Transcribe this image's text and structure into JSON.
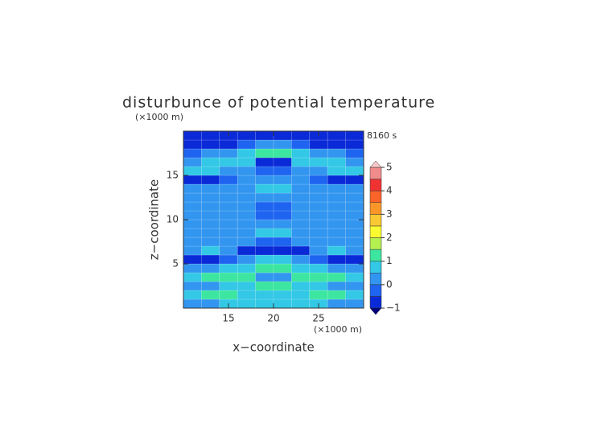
{
  "chart_data": {
    "type": "contour",
    "title": "disturbunce of potential temperature",
    "time_label": "8160 s",
    "xlabel": "x−coordinate",
    "ylabel": "z−coordinate",
    "x_unit": "(×1000 m)",
    "y_unit": "(×1000 m)",
    "xlim": [
      10,
      30
    ],
    "ylim": [
      0,
      20
    ],
    "xticks": [
      15,
      20,
      25
    ],
    "yticks": [
      5,
      10,
      15
    ],
    "x": [
      11,
      13,
      15,
      17,
      19,
      21,
      23,
      25,
      27,
      29
    ],
    "y": [
      0.5,
      1.5,
      2.5,
      3.5,
      4.5,
      5.5,
      6.5,
      7.5,
      8.5,
      9.5,
      10.5,
      11.5,
      12.5,
      13.5,
      14.5,
      15.5,
      16.5,
      17.5,
      18.5,
      19.5
    ],
    "z": [
      [
        0.3,
        0.3,
        0.6,
        0.8,
        0.6,
        0.6,
        0.8,
        0.6,
        0.3,
        0.3
      ],
      [
        0.6,
        1.2,
        1.2,
        0.8,
        0.5,
        0.5,
        0.8,
        1.2,
        1.2,
        0.6
      ],
      [
        0.3,
        0.4,
        0.6,
        0.8,
        1.0,
        1.0,
        0.8,
        0.6,
        0.4,
        0.3
      ],
      [
        0.6,
        1.2,
        1.4,
        1.0,
        0.4,
        0.4,
        1.0,
        1.4,
        1.2,
        0.6
      ],
      [
        0.3,
        0.4,
        0.6,
        0.8,
        1.2,
        1.2,
        0.8,
        0.6,
        0.4,
        0.3
      ],
      [
        -0.6,
        -0.6,
        -0.3,
        0,
        0.6,
        0.6,
        0,
        -0.3,
        -0.6,
        -0.6
      ],
      [
        0.3,
        0.6,
        0.3,
        -0.6,
        -0.8,
        -0.8,
        -0.6,
        0.3,
        0.6,
        0.3
      ],
      [
        0.2,
        0.2,
        0.3,
        0.3,
        -0.3,
        -0.3,
        0.3,
        0.3,
        0.2,
        0.2
      ],
      [
        0.2,
        0.2,
        0.3,
        0.3,
        0.8,
        0.8,
        0.3,
        0.3,
        0.2,
        0.2
      ],
      [
        0.2,
        0.2,
        0.2,
        0.2,
        0.3,
        0.3,
        0.2,
        0.2,
        0.2,
        0.2
      ],
      [
        0.2,
        0.2,
        0.2,
        0.2,
        -0.2,
        -0.2,
        0.2,
        0.2,
        0.2,
        0.2
      ],
      [
        0.2,
        0.2,
        0.2,
        0.2,
        -0.2,
        -0.2,
        0.2,
        0.2,
        0.2,
        0.2
      ],
      [
        0.2,
        0.2,
        0.2,
        0.3,
        0.3,
        0.3,
        0.3,
        0.2,
        0.2,
        0.2
      ],
      [
        0.2,
        0.3,
        0.3,
        0.3,
        0.8,
        0.8,
        0.3,
        0.3,
        0.3,
        0.2
      ],
      [
        -0.6,
        -0.6,
        -0.3,
        0.2,
        0.3,
        0.3,
        0.2,
        -0.3,
        -0.6,
        -0.6
      ],
      [
        0.8,
        0.6,
        0.3,
        0.2,
        -0.3,
        -0.3,
        0.2,
        0.3,
        0.6,
        0.8
      ],
      [
        0.3,
        0.6,
        0.8,
        0.6,
        -0.6,
        -0.6,
        0.6,
        0.8,
        0.6,
        0.3
      ],
      [
        -0.2,
        0.2,
        0.3,
        0.8,
        1.2,
        1.2,
        0.8,
        0.3,
        0.2,
        -0.2
      ],
      [
        -0.8,
        -0.8,
        -0.6,
        -0.3,
        0.2,
        0.2,
        -0.3,
        -0.6,
        -0.8,
        -0.8
      ],
      [
        -0.6,
        -0.6,
        -0.6,
        -0.8,
        -0.8,
        -0.8,
        -0.8,
        -0.6,
        -0.6,
        -0.6
      ]
    ],
    "levels": [
      -1,
      -0.5,
      0,
      0.5,
      1,
      1.5,
      2,
      2.5,
      3,
      3.5,
      4,
      4.5,
      5
    ],
    "colors": [
      "#00007a",
      "#0a2ad8",
      "#1e64f0",
      "#3296f0",
      "#32c8e6",
      "#3ce6a0",
      "#b4f050",
      "#fafa32",
      "#fac832",
      "#fa9628",
      "#fa6428",
      "#f03232",
      "#f08c8c",
      "#f8c8c8"
    ],
    "colorbar_ticks": [
      {
        "value": -1,
        "label": "−1"
      },
      0,
      1,
      2,
      3,
      4,
      5
    ]
  }
}
